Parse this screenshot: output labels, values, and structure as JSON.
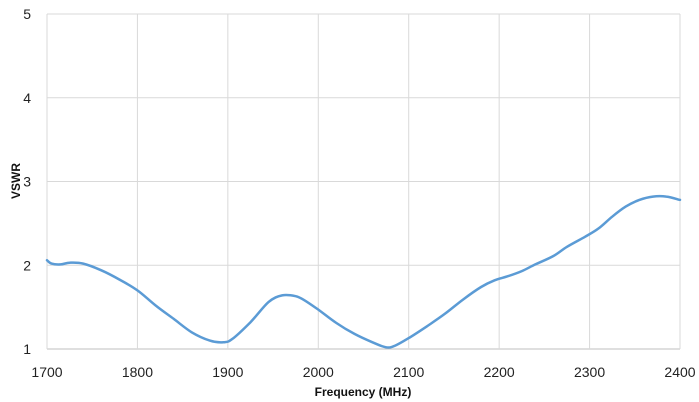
{
  "chart_data": {
    "type": "line",
    "xlabel": "Frequency (MHz)",
    "ylabel": "VSWR",
    "xlim": [
      1700,
      2400
    ],
    "ylim": [
      1,
      5
    ],
    "x_ticks": [
      1700,
      1800,
      1900,
      2000,
      2100,
      2200,
      2300,
      2400
    ],
    "y_ticks": [
      1,
      2,
      3,
      4,
      5
    ],
    "grid": true,
    "line_color": "#5B9BD5",
    "series": [
      {
        "x": [
          1700,
          1705,
          1715,
          1725,
          1740,
          1760,
          1780,
          1800,
          1820,
          1840,
          1860,
          1880,
          1895,
          1905,
          1925,
          1945,
          1960,
          1975,
          1985,
          2000,
          2020,
          2040,
          2060,
          2075,
          2085,
          2100,
          2120,
          2140,
          2160,
          2180,
          2195,
          2210,
          2225,
          2240,
          2260,
          2275,
          2295,
          2310,
          2325,
          2340,
          2355,
          2370,
          2385,
          2400
        ],
        "y": [
          2.06,
          2.02,
          2.01,
          2.03,
          2.02,
          1.94,
          1.83,
          1.7,
          1.52,
          1.36,
          1.2,
          1.1,
          1.08,
          1.12,
          1.32,
          1.56,
          1.64,
          1.63,
          1.58,
          1.47,
          1.31,
          1.18,
          1.08,
          1.02,
          1.04,
          1.13,
          1.27,
          1.42,
          1.59,
          1.74,
          1.82,
          1.87,
          1.93,
          2.01,
          2.11,
          2.22,
          2.34,
          2.44,
          2.58,
          2.7,
          2.78,
          2.82,
          2.82,
          2.78
        ]
      }
    ]
  }
}
